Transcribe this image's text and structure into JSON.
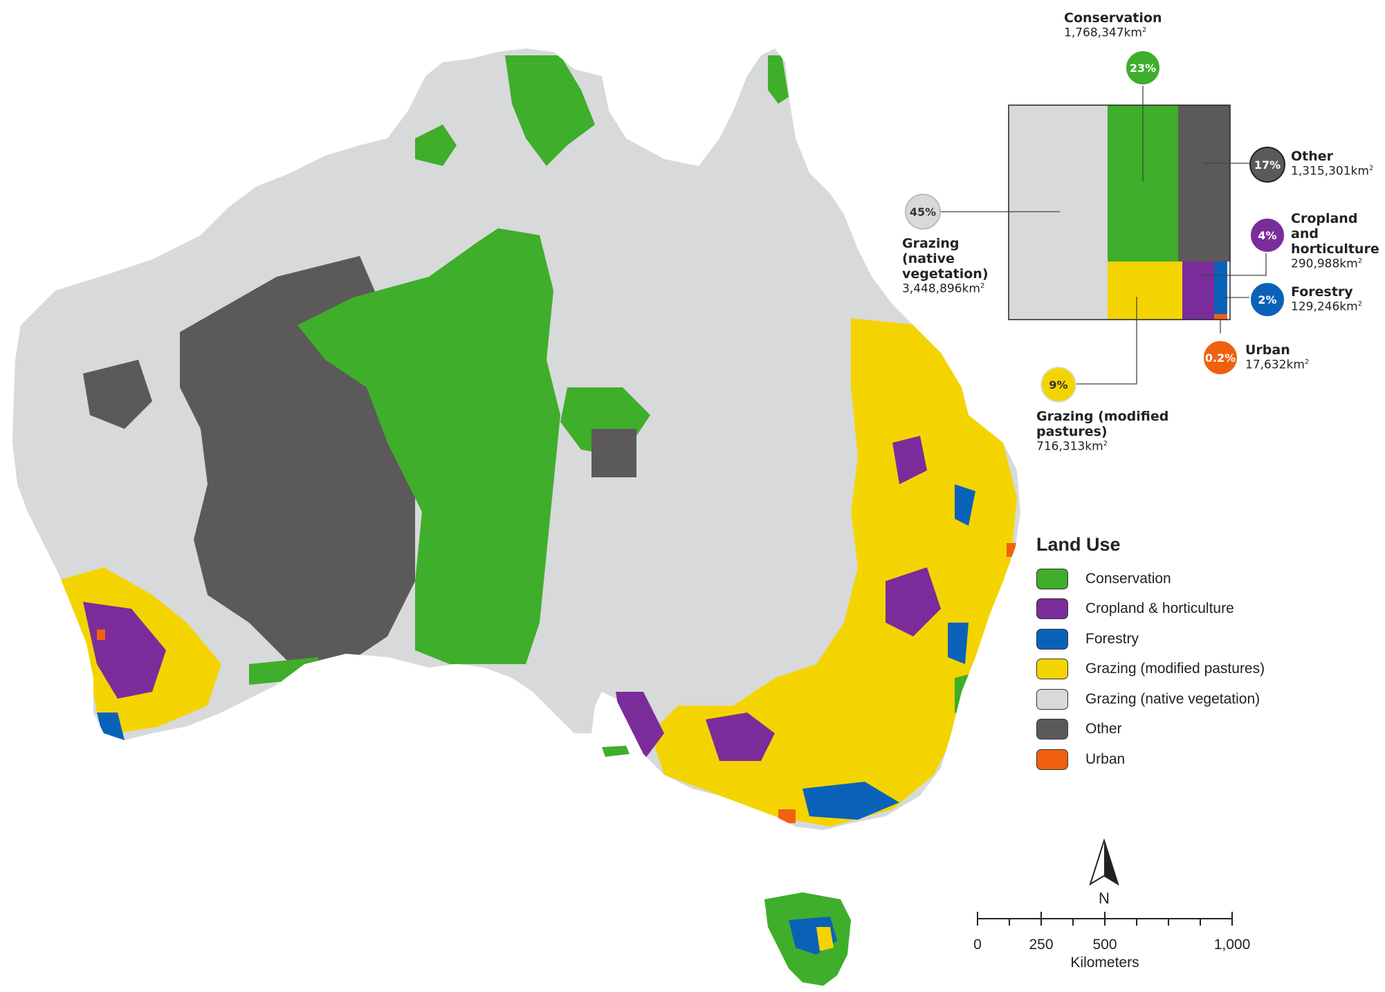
{
  "legend": {
    "title": "Land Use",
    "items": [
      {
        "label": "Conservation",
        "color": "#3fae2a"
      },
      {
        "label": "Cropland & horticulture",
        "color": "#7a2d9a"
      },
      {
        "label": "Forestry",
        "color": "#0a62b8"
      },
      {
        "label": "Grazing (modified pastures)",
        "color": "#f4d400"
      },
      {
        "label": "Grazing (native vegetation)",
        "color": "#d7d9db"
      },
      {
        "label": "Other",
        "color": "#5b5959"
      },
      {
        "label": "Urban",
        "color": "#f06010"
      }
    ]
  },
  "summary": {
    "conservation": {
      "name": "Conservation",
      "area": "1,768,347km",
      "pct": "23%",
      "fraction": 0.23
    },
    "other": {
      "name": "Other",
      "area": "1,315,301km",
      "pct": "17%",
      "fraction": 0.17
    },
    "cropland": {
      "name": "Cropland and horticulture",
      "area": "290,988km",
      "pct": "4%",
      "fraction": 0.04
    },
    "forestry": {
      "name": "Forestry",
      "area": "129,246km",
      "pct": "2%",
      "fraction": 0.02
    },
    "urban": {
      "name": "Urban",
      "area": "17,632km",
      "pct": "0.2%",
      "fraction": 0.002
    },
    "grazing_native": {
      "name": "Grazing (native vegetation)",
      "area": "3,448,896km",
      "pct": "45%",
      "fraction": 0.45
    },
    "grazing_modified": {
      "name": "Grazing (modified pastures)",
      "area": "716,313km",
      "pct": "9%",
      "fraction": 0.09
    },
    "area_unit_superscript": "2"
  },
  "north_arrow": {
    "label": "N"
  },
  "scale_bar": {
    "ticks": [
      "0",
      "250",
      "500",
      "1,000"
    ],
    "unit": "Kilometers"
  }
}
